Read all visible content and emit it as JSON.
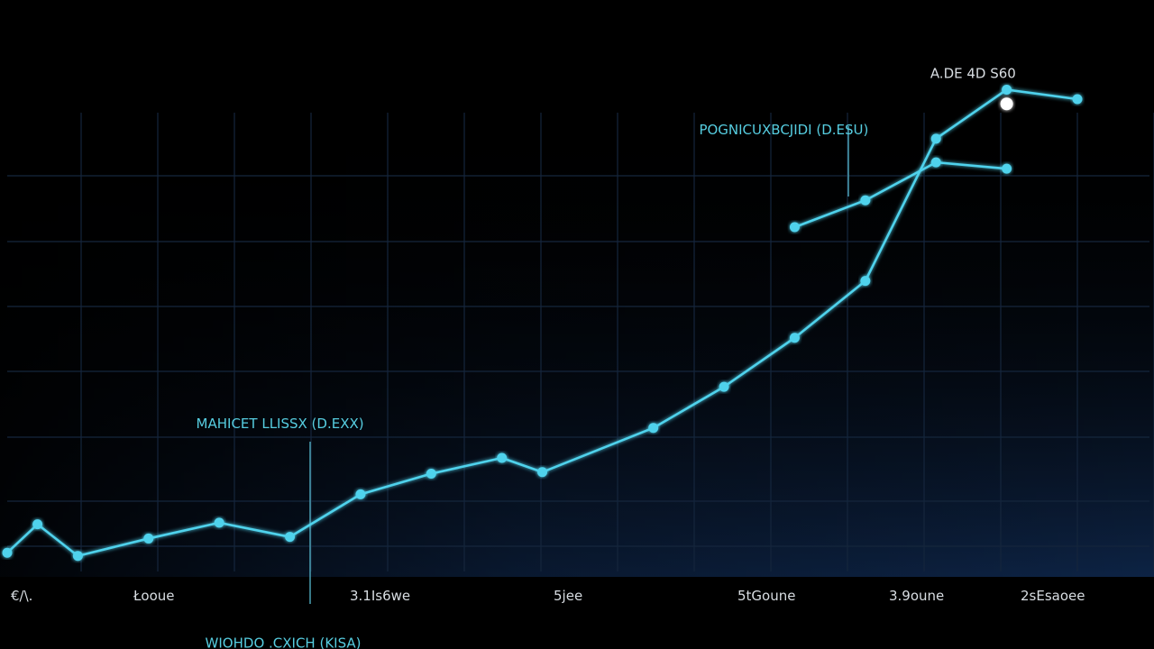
{
  "chart_data": {
    "type": "line",
    "title": "",
    "xlabel": "",
    "ylabel": "",
    "grid": true,
    "x_tick_labels": [
      "€/\\.",
      "Łooue",
      "3.1Is6we",
      "5jee",
      "5tGoune",
      "3.9oune",
      "2sEsaoee"
    ],
    "series": [
      {
        "color": "#4fd2ec",
        "values": [
          [
            0,
            3
          ],
          [
            3,
            21
          ],
          [
            7,
            1
          ],
          [
            14,
            12
          ],
          [
            21,
            22
          ],
          [
            28,
            13
          ],
          [
            35,
            40
          ],
          [
            42,
            53
          ],
          [
            49,
            63
          ],
          [
            53,
            54
          ],
          [
            64,
            82
          ],
          [
            71,
            108
          ],
          [
            78,
            139
          ],
          [
            85,
            175
          ],
          [
            92,
            265
          ],
          [
            99,
            296
          ],
          [
            106,
            290
          ]
        ]
      },
      {
        "color": "#4fd2ec",
        "values": [
          [
            78,
            209
          ],
          [
            85,
            226
          ],
          [
            92,
            250
          ],
          [
            99,
            246
          ]
        ]
      }
    ],
    "highlight_point": {
      "x": 99,
      "y": 287,
      "color": "#ffffff"
    },
    "annotations": [
      {
        "text": "MAHICET LLISSX (D.EXX)",
        "x": 28,
        "y": 75,
        "color": "#56cde0"
      },
      {
        "text": "POGNICUXBCJIDI (D.ESU)",
        "x": 78,
        "y": 270,
        "color": "#56cde0"
      },
      {
        "text": "A.DE 4D S60",
        "x": 95,
        "y": 300,
        "color": "#d8dde2"
      },
      {
        "text": "WIOHDO .CXICH (KISA)",
        "x": 28,
        "y": -48,
        "color": "#56cde0"
      }
    ],
    "xlim": [
      0,
      106
    ],
    "ylim": [
      -10,
      290
    ]
  }
}
